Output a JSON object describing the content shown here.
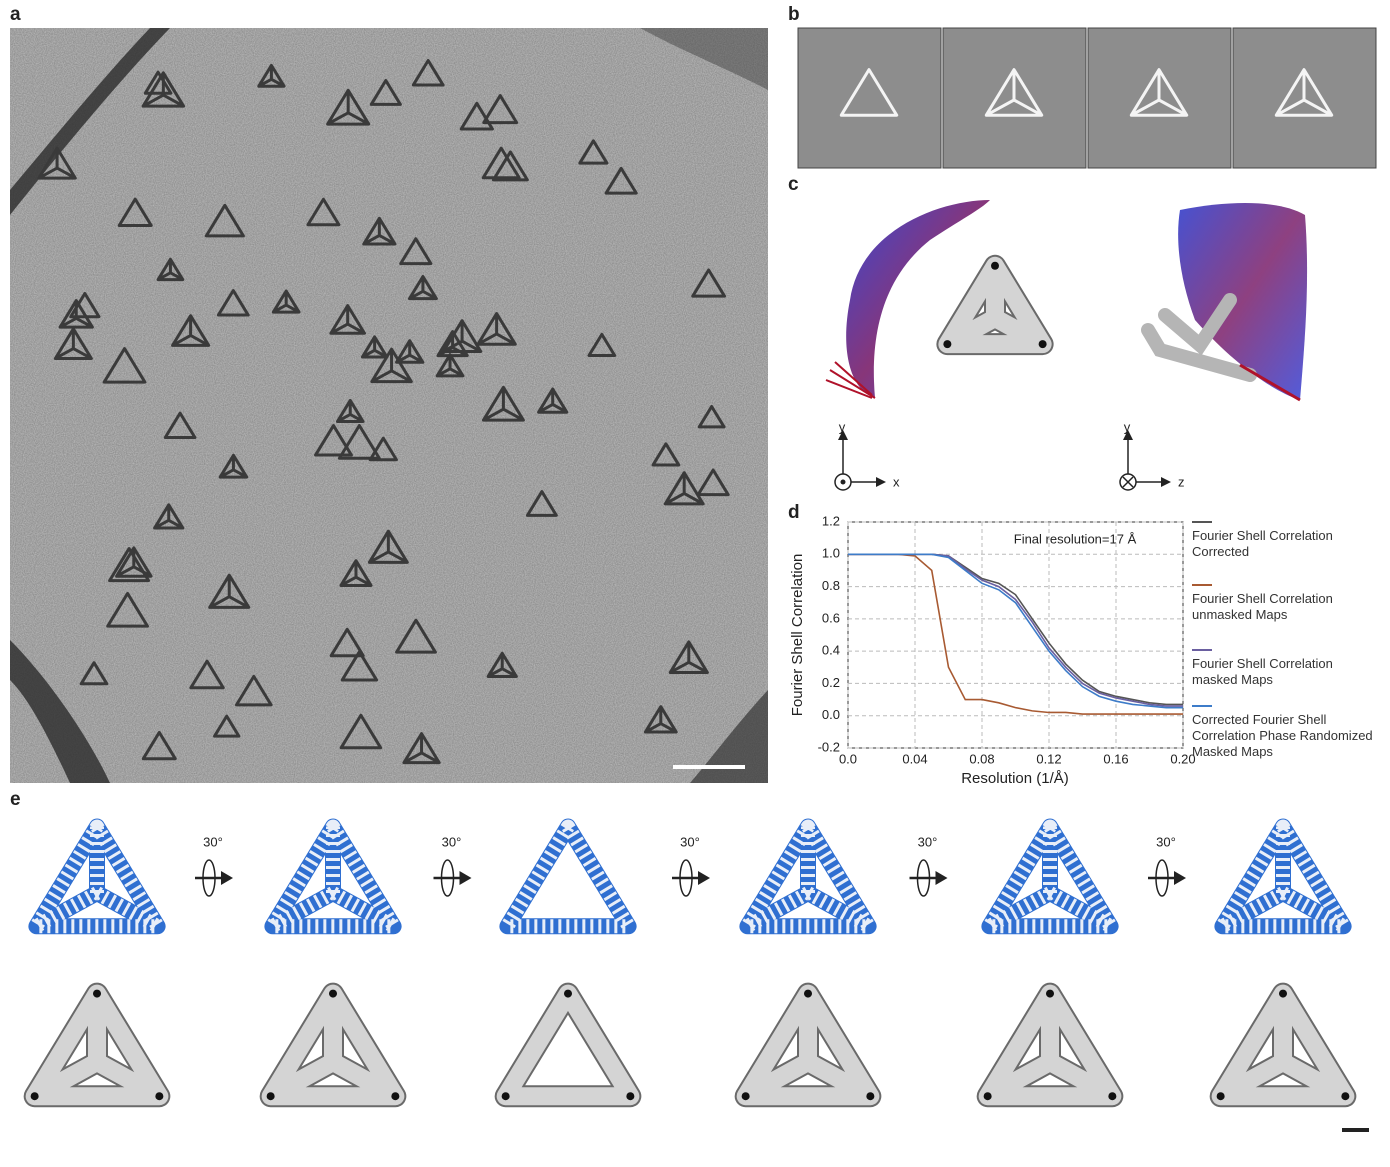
{
  "panels": {
    "labels": [
      "a",
      "b",
      "c",
      "d",
      "e"
    ],
    "axes_glyphs": [
      {
        "vertical": "y",
        "horizontal": "x"
      },
      {
        "vertical": "y",
        "horizontal": "z"
      }
    ],
    "rotation_labels": [
      "30°",
      "30°",
      "30°",
      "30°",
      "30°"
    ]
  },
  "chart_data": {
    "type": "line",
    "annotation": "Final resolution=17 Å",
    "x_label": "Resolution (1/Å)",
    "y_label": "Fourier Shell Correlation",
    "x": [
      0,
      0.01,
      0.02,
      0.03,
      0.04,
      0.05,
      0.06,
      0.07,
      0.08,
      0.09,
      0.1,
      0.11,
      0.12,
      0.13,
      0.14,
      0.15,
      0.16,
      0.17,
      0.18,
      0.19,
      0.2
    ],
    "series": [
      {
        "name": "Fourier Shell Correlation Corrected",
        "color": "#555555",
        "values": [
          1,
          1,
          1,
          1,
          1,
          1,
          0.99,
          0.92,
          0.85,
          0.82,
          0.75,
          0.6,
          0.45,
          0.32,
          0.22,
          0.15,
          0.12,
          0.1,
          0.08,
          0.07,
          0.07
        ]
      },
      {
        "name": "Fourier Shell Correlation unmasked Maps",
        "color": "#a85a32",
        "values": [
          1,
          1,
          1,
          1,
          0.99,
          0.9,
          0.3,
          0.1,
          0.1,
          0.08,
          0.05,
          0.03,
          0.02,
          0.02,
          0.01,
          0.01,
          0.01,
          0.01,
          0.01,
          0.01,
          0.01
        ]
      },
      {
        "name": "Fourier Shell Correlation masked Maps",
        "color": "#6a5fa0",
        "values": [
          1,
          1,
          1,
          1,
          1,
          1,
          0.99,
          0.91,
          0.84,
          0.8,
          0.72,
          0.58,
          0.42,
          0.3,
          0.2,
          0.14,
          0.11,
          0.09,
          0.07,
          0.06,
          0.06
        ]
      },
      {
        "name": "Corrected Fourier Shell Correlation Phase Randomized Masked Maps",
        "color": "#3d7cc9",
        "values": [
          1,
          1,
          1,
          1,
          1,
          1,
          0.98,
          0.9,
          0.82,
          0.78,
          0.7,
          0.55,
          0.4,
          0.28,
          0.18,
          0.12,
          0.09,
          0.07,
          0.06,
          0.05,
          0.05
        ]
      }
    ],
    "xlim": [
      0,
      0.2
    ],
    "xticks": [
      {
        "value": 0,
        "label": "0.0"
      },
      0.04,
      0.08,
      0.12,
      0.16,
      {
        "value": 0.2,
        "label": "0.20"
      }
    ],
    "ylim": [
      -0.2,
      1.2
    ],
    "yticks": [
      -0.2,
      {
        "value": 0,
        "label": "0.0"
      },
      0.2,
      0.4,
      0.6,
      0.8,
      {
        "value": 1,
        "label": "1.0"
      },
      1.2
    ],
    "grid": true
  }
}
